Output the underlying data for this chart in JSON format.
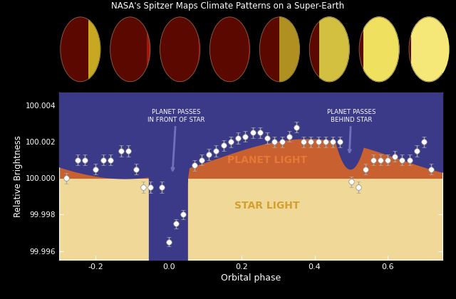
{
  "title": "NASA's Spitzer Maps Climate Patterns on a Super-Earth",
  "xlabel": "Orbital phase",
  "ylabel": "Relative Brightness",
  "xlim": [
    -0.3,
    0.75
  ],
  "ylim": [
    99.9955,
    100.0047
  ],
  "yticks": [
    99.996,
    99.998,
    100.0,
    100.002,
    100.004
  ],
  "xticks": [
    -0.2,
    0.0,
    0.2,
    0.4,
    0.6
  ],
  "bg_color": "#000000",
  "plot_bg_color": "#3a3a88",
  "starlight_color": "#f0d898",
  "planet_light_color": "#c86030",
  "text_color": "white",
  "annotation_color": "#7070bb",
  "star_light_level": 100.0,
  "planet_light_label": "PLANET LIGHT",
  "star_light_label": "STAR LIGHT",
  "annotation1_text": "PLANET PASSES\nIN FRONT OF STAR",
  "annotation2_text": "PLANET PASSES\nBEHIND STAR",
  "data_x": [
    -0.28,
    -0.25,
    -0.23,
    -0.2,
    -0.18,
    -0.16,
    -0.13,
    -0.11,
    -0.09,
    -0.07,
    -0.05,
    -0.02,
    0.0,
    0.02,
    0.04,
    0.07,
    0.09,
    0.11,
    0.13,
    0.15,
    0.17,
    0.19,
    0.21,
    0.23,
    0.25,
    0.27,
    0.29,
    0.31,
    0.33,
    0.35,
    0.37,
    0.39,
    0.41,
    0.43,
    0.45,
    0.47,
    0.5,
    0.52,
    0.54,
    0.56,
    0.58,
    0.6,
    0.62,
    0.64,
    0.66,
    0.68,
    0.7,
    0.72
  ],
  "data_y": [
    100.0,
    100.001,
    100.001,
    100.0005,
    100.001,
    100.001,
    100.0015,
    100.0015,
    100.0005,
    99.9995,
    99.9995,
    99.9995,
    99.9965,
    99.9975,
    99.998,
    100.0007,
    100.001,
    100.0013,
    100.0015,
    100.0018,
    100.002,
    100.0022,
    100.0023,
    100.0025,
    100.0025,
    100.0022,
    100.002,
    100.002,
    100.0023,
    100.0028,
    100.002,
    100.002,
    100.002,
    100.002,
    100.002,
    100.002,
    99.9998,
    99.9995,
    100.0005,
    100.001,
    100.001,
    100.001,
    100.0012,
    100.001,
    100.001,
    100.0015,
    100.002,
    100.0005
  ],
  "data_yerr": [
    0.0003,
    0.0003,
    0.0003,
    0.0003,
    0.0003,
    0.0003,
    0.0003,
    0.0003,
    0.0003,
    0.0003,
    0.0003,
    0.0003,
    0.00025,
    0.00025,
    0.00025,
    0.0003,
    0.0003,
    0.0003,
    0.0003,
    0.0003,
    0.0003,
    0.0003,
    0.0003,
    0.0003,
    0.0003,
    0.0003,
    0.0003,
    0.0003,
    0.0003,
    0.0003,
    0.0003,
    0.0003,
    0.0003,
    0.0003,
    0.0003,
    0.0003,
    0.0003,
    0.0003,
    0.0003,
    0.0003,
    0.0003,
    0.0003,
    0.0003,
    0.0003,
    0.0003,
    0.0003,
    0.0003,
    0.0003
  ],
  "planet_bright_colors": [
    "#c8a820",
    "#a01808",
    "#880808",
    "#7a0800",
    "#b09020",
    "#d4c040",
    "#f0e060",
    "#f5e878"
  ],
  "planet_dark_color": "#5a0800",
  "planet_bright_fractions": [
    0.3,
    0.08,
    0.05,
    0.05,
    0.5,
    0.75,
    0.9,
    0.95
  ]
}
